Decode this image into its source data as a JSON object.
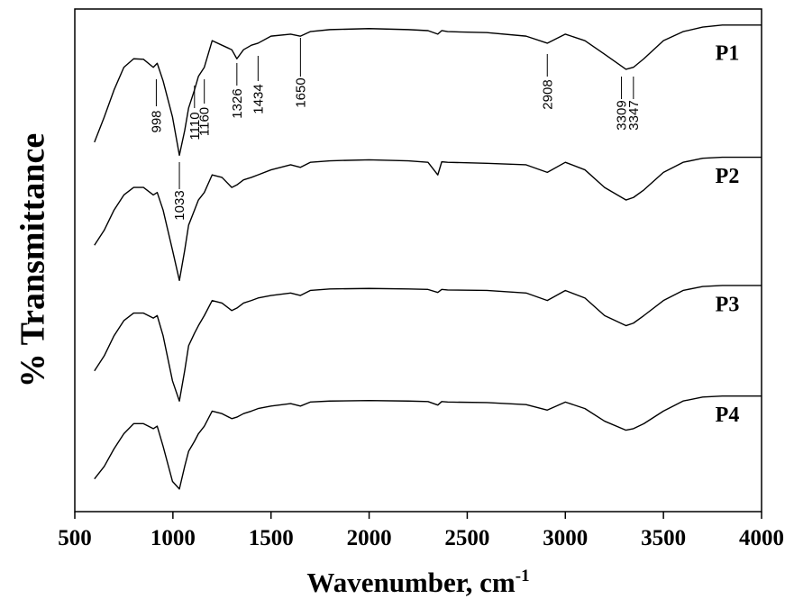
{
  "chart_data": {
    "type": "line",
    "xlabel": "Wavenumber, cm",
    "xlabel_superscript": "-1",
    "ylabel": "% Transmittance",
    "xlim": [
      500,
      4000
    ],
    "xticks": [
      500,
      1000,
      1500,
      2000,
      2500,
      3000,
      3500,
      4000
    ],
    "ylim": [
      0,
      100
    ],
    "x": [
      600,
      650,
      700,
      750,
      800,
      850,
      900,
      920,
      950,
      998,
      1033,
      1060,
      1080,
      1110,
      1130,
      1160,
      1200,
      1250,
      1300,
      1326,
      1360,
      1400,
      1434,
      1500,
      1600,
      1650,
      1700,
      1800,
      2000,
      2200,
      2300,
      2350,
      2370,
      2400,
      2600,
      2800,
      2908,
      3000,
      3100,
      3200,
      3309,
      3347,
      3400,
      3500,
      3600,
      3700,
      3800,
      4000
    ],
    "series": [
      {
        "name": "P1",
        "color": "#000000",
        "values": [
          73.5,
          78.5,
          83.9,
          88.4,
          90.1,
          90.0,
          88.4,
          89.2,
          85.7,
          78.5,
          70.9,
          75.8,
          80.3,
          83.9,
          86.6,
          88.4,
          93.7,
          92.8,
          91.9,
          90.1,
          91.9,
          92.8,
          93.2,
          94.6,
          95.0,
          94.6,
          95.5,
          95.9,
          96.1,
          95.9,
          95.7,
          95.0,
          95.7,
          95.5,
          95.3,
          94.6,
          93.2,
          95.0,
          93.7,
          91.0,
          88.0,
          88.4,
          90.1,
          93.7,
          95.5,
          96.4,
          96.8,
          96.8
        ]
      },
      {
        "name": "P2",
        "color": "#000000",
        "values": [
          53,
          56,
          60,
          63,
          64.5,
          64.5,
          63,
          63.5,
          60,
          52,
          46,
          52,
          57,
          60,
          62,
          63.5,
          67,
          66.5,
          64.5,
          65,
          66,
          66.5,
          67,
          68,
          69,
          68.5,
          69.5,
          69.8,
          70,
          69.8,
          69.5,
          67,
          69.6,
          69.5,
          69.3,
          69,
          67.5,
          69.5,
          68,
          64.5,
          62,
          62.5,
          64,
          67.5,
          69.5,
          70.3,
          70.5,
          70.5
        ]
      },
      {
        "name": "P3",
        "color": "#000000",
        "values": [
          28,
          31,
          35,
          38,
          39.5,
          39.5,
          38.5,
          39,
          35,
          26,
          22,
          28,
          33,
          35.5,
          37,
          39,
          42,
          41.5,
          40,
          40.5,
          41.5,
          42,
          42.5,
          43,
          43.5,
          43,
          44,
          44.3,
          44.4,
          44.3,
          44.2,
          43.6,
          44.2,
          44.1,
          44,
          43.5,
          42,
          44,
          42.5,
          39,
          37,
          37.5,
          39,
          42,
          44,
          44.8,
          45,
          45
        ]
      },
      {
        "name": "P4",
        "color": "#000000",
        "values": [
          6.5,
          9,
          12.5,
          15.5,
          17.5,
          17.5,
          16.5,
          17,
          13,
          6,
          4.5,
          9,
          12,
          14,
          15.5,
          17,
          20,
          19.5,
          18.5,
          18.8,
          19.5,
          20,
          20.5,
          21,
          21.5,
          21,
          21.8,
          22,
          22.1,
          22,
          21.9,
          21.2,
          21.9,
          21.8,
          21.7,
          21.3,
          20.2,
          21.8,
          20.5,
          18,
          16.2,
          16.5,
          17.5,
          20,
          22,
          22.8,
          23,
          23
        ]
      }
    ],
    "peak_labels": [
      998,
      1033,
      1110,
      1160,
      1326,
      1434,
      1650,
      2908,
      3309,
      3347
    ]
  }
}
